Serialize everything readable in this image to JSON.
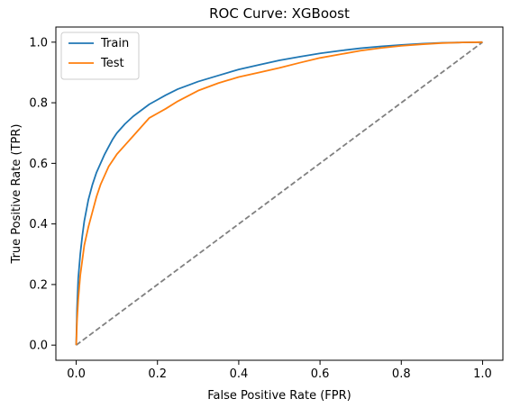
{
  "chart_data": {
    "type": "line",
    "title": "ROC Curve: XGBoost",
    "xlabel": "False Positive Rate (FPR)",
    "ylabel": "True Positive Rate (TPR)",
    "xlim": [
      -0.05,
      1.05
    ],
    "ylim": [
      -0.05,
      1.05
    ],
    "xticks": [
      "0.0",
      "0.2",
      "0.4",
      "0.6",
      "0.8",
      "1.0"
    ],
    "yticks": [
      "0.0",
      "0.2",
      "0.4",
      "0.6",
      "0.8",
      "1.0"
    ],
    "grid": false,
    "legend_position": "upper-left",
    "series": [
      {
        "name": "Train",
        "color": "#1f77b4",
        "x": [
          0.0,
          0.002,
          0.005,
          0.01,
          0.015,
          0.02,
          0.03,
          0.04,
          0.05,
          0.06,
          0.07,
          0.08,
          0.09,
          0.1,
          0.12,
          0.14,
          0.16,
          0.18,
          0.2,
          0.22,
          0.25,
          0.28,
          0.3,
          0.35,
          0.4,
          0.45,
          0.5,
          0.55,
          0.6,
          0.65,
          0.7,
          0.75,
          0.8,
          0.85,
          0.9,
          0.95,
          1.0
        ],
        "y": [
          0.0,
          0.12,
          0.22,
          0.3,
          0.36,
          0.41,
          0.48,
          0.53,
          0.57,
          0.6,
          0.63,
          0.655,
          0.68,
          0.7,
          0.73,
          0.755,
          0.775,
          0.795,
          0.81,
          0.825,
          0.845,
          0.86,
          0.87,
          0.89,
          0.91,
          0.925,
          0.94,
          0.952,
          0.963,
          0.972,
          0.98,
          0.986,
          0.991,
          0.995,
          0.998,
          0.999,
          1.0
        ]
      },
      {
        "name": "Test",
        "color": "#ff7f0e",
        "x": [
          0.0,
          0.002,
          0.005,
          0.01,
          0.015,
          0.02,
          0.03,
          0.04,
          0.05,
          0.06,
          0.07,
          0.08,
          0.1,
          0.12,
          0.14,
          0.16,
          0.18,
          0.2,
          0.22,
          0.25,
          0.3,
          0.35,
          0.4,
          0.45,
          0.5,
          0.55,
          0.6,
          0.65,
          0.7,
          0.75,
          0.8,
          0.85,
          0.9,
          0.95,
          1.0
        ],
        "y": [
          0.0,
          0.08,
          0.15,
          0.23,
          0.28,
          0.33,
          0.39,
          0.44,
          0.49,
          0.53,
          0.56,
          0.59,
          0.63,
          0.66,
          0.69,
          0.72,
          0.75,
          0.765,
          0.78,
          0.805,
          0.84,
          0.865,
          0.885,
          0.9,
          0.915,
          0.932,
          0.948,
          0.96,
          0.972,
          0.981,
          0.988,
          0.993,
          0.997,
          0.999,
          1.0
        ]
      },
      {
        "name": "",
        "color": "#808080",
        "dashed": true,
        "x": [
          0.0,
          1.0
        ],
        "y": [
          0.0,
          1.0
        ]
      }
    ]
  }
}
